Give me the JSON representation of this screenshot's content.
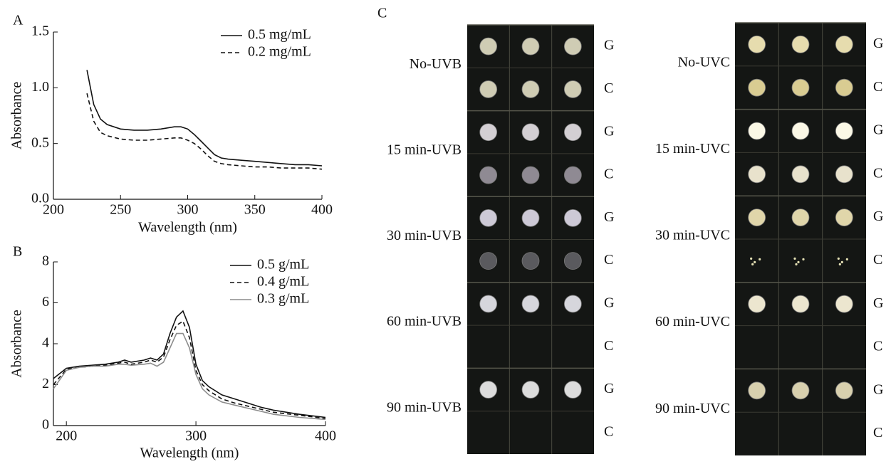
{
  "chart_data": [
    {
      "type": "line",
      "panel_label": "A",
      "xlabel": "Wavelength (nm)",
      "ylabel": "Absorbance",
      "legend": "upper right",
      "xlim": [
        200,
        400
      ],
      "xticks": [
        200,
        250,
        300,
        350,
        400
      ],
      "ylim": [
        0,
        1.5
      ],
      "yticks": [
        {
          "value": 0,
          "label": "0.0"
        },
        0.5,
        {
          "value": 1,
          "label": "1.0"
        },
        1.5
      ],
      "x": [
        225,
        230,
        235,
        240,
        250,
        260,
        270,
        280,
        290,
        295,
        300,
        305,
        310,
        315,
        320,
        325,
        330,
        340,
        350,
        360,
        370,
        380,
        390,
        400
      ],
      "series": [
        {
          "name": "0.5 mg/mL",
          "color": "#111111",
          "dash": false,
          "values": [
            1.16,
            0.85,
            0.72,
            0.67,
            0.63,
            0.62,
            0.62,
            0.63,
            0.65,
            0.65,
            0.63,
            0.58,
            0.52,
            0.46,
            0.4,
            0.37,
            0.36,
            0.35,
            0.34,
            0.33,
            0.32,
            0.31,
            0.31,
            0.3
          ]
        },
        {
          "name": "0.2 mg/mL",
          "color": "#111111",
          "dash": true,
          "values": [
            0.95,
            0.7,
            0.6,
            0.57,
            0.54,
            0.53,
            0.53,
            0.54,
            0.55,
            0.55,
            0.53,
            0.5,
            0.45,
            0.39,
            0.34,
            0.32,
            0.31,
            0.3,
            0.29,
            0.29,
            0.28,
            0.28,
            0.28,
            0.27
          ]
        }
      ]
    },
    {
      "type": "line",
      "panel_label": "B",
      "xlabel": "Wavelength (nm)",
      "ylabel": "Absorbance",
      "legend": "upper right",
      "xlim": [
        190,
        400
      ],
      "xticks": [
        200,
        300,
        400
      ],
      "ylim": [
        0,
        8
      ],
      "yticks": [
        0,
        2,
        4,
        6,
        8
      ],
      "x": [
        190,
        200,
        210,
        220,
        230,
        240,
        245,
        250,
        260,
        265,
        270,
        275,
        280,
        285,
        290,
        295,
        300,
        305,
        310,
        320,
        330,
        340,
        350,
        360,
        380,
        400
      ],
      "series": [
        {
          "name": "0.5 g/mL",
          "color": "#111111",
          "dash": false,
          "values": [
            2.3,
            2.8,
            2.9,
            2.95,
            3.0,
            3.1,
            3.2,
            3.1,
            3.2,
            3.3,
            3.2,
            3.5,
            4.5,
            5.3,
            5.6,
            4.8,
            3.0,
            2.2,
            1.9,
            1.5,
            1.3,
            1.1,
            0.9,
            0.75,
            0.55,
            0.4
          ]
        },
        {
          "name": "0.4 g/mL",
          "color": "#111111",
          "dash": true,
          "values": [
            2.0,
            2.75,
            2.85,
            2.9,
            2.95,
            3.05,
            3.1,
            3.0,
            3.1,
            3.2,
            3.1,
            3.35,
            4.2,
            4.9,
            5.1,
            4.3,
            2.7,
            2.0,
            1.7,
            1.3,
            1.1,
            0.95,
            0.8,
            0.65,
            0.5,
            0.35
          ]
        },
        {
          "name": "0.3 g/mL",
          "color": "#8c8c8c",
          "dash": false,
          "values": [
            1.8,
            2.7,
            2.85,
            2.9,
            2.9,
            3.0,
            3.0,
            2.95,
            3.0,
            3.05,
            2.9,
            3.1,
            3.8,
            4.5,
            4.5,
            3.8,
            2.5,
            1.8,
            1.5,
            1.15,
            1.0,
            0.85,
            0.7,
            0.55,
            0.4,
            0.3
          ]
        }
      ]
    }
  ],
  "panel_c": {
    "label": "C",
    "plates": [
      {
        "groups": [
          {
            "label": "No-UVB",
            "rows": [
              "G",
              "C"
            ]
          },
          {
            "label": "15 min-UVB",
            "rows": [
              "G",
              "C"
            ]
          },
          {
            "label": "30 min-UVB",
            "rows": [
              "G",
              "C"
            ]
          },
          {
            "label": "60 min-UVB",
            "rows": [
              "G",
              "C"
            ]
          },
          {
            "label": "90 min-UVB",
            "rows": [
              "G",
              "C"
            ]
          }
        ]
      },
      {
        "groups": [
          {
            "label": "No-UVC",
            "rows": [
              "G",
              "C"
            ]
          },
          {
            "label": "15 min-UVC",
            "rows": [
              "G",
              "C"
            ]
          },
          {
            "label": "30 min-UVC",
            "rows": [
              "G",
              "C"
            ]
          },
          {
            "label": "60 min-UVC",
            "rows": [
              "G",
              "C"
            ]
          },
          {
            "label": "90 min-UVC",
            "rows": [
              "G",
              "C"
            ]
          }
        ]
      }
    ]
  }
}
